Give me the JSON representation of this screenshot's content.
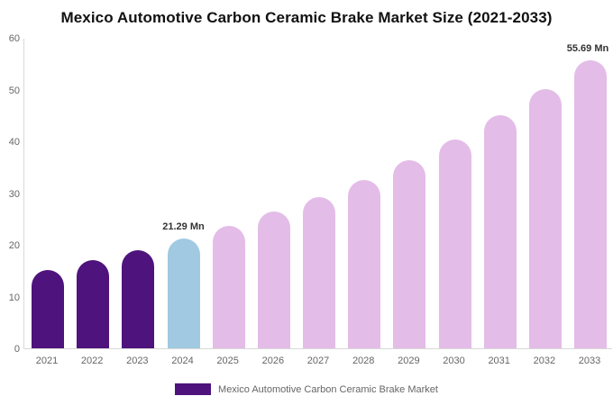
{
  "chart": {
    "title": "Mexico Automotive Carbon Ceramic Brake Market Size (2021-2033)"
  },
  "chart_data": {
    "type": "bar",
    "title": "Mexico Automotive Carbon Ceramic Brake Market Size (2021-2033)",
    "categories": [
      "2021",
      "2022",
      "2023",
      "2024",
      "2025",
      "2026",
      "2027",
      "2028",
      "2029",
      "2030",
      "2031",
      "2032",
      "2033"
    ],
    "values": [
      15.2,
      17.1,
      19.0,
      21.29,
      23.7,
      26.4,
      29.3,
      32.6,
      36.3,
      40.4,
      45.0,
      50.1,
      55.69
    ],
    "point_colors": [
      "#4E137C",
      "#4E137C",
      "#4E137C",
      "#A1C9E1",
      "#E4BCE8",
      "#E4BCE8",
      "#E4BCE8",
      "#E4BCE8",
      "#E4BCE8",
      "#E4BCE8",
      "#E4BCE8",
      "#E4BCE8",
      "#E4BCE8"
    ],
    "value_labels": [
      {
        "index": 3,
        "text": "21.29 Mn"
      },
      {
        "index": 12,
        "text": "55.69 Mn"
      }
    ],
    "xlabel": "",
    "ylabel": "",
    "ylim": [
      0,
      60
    ],
    "yticks": [
      "0",
      "10",
      "20",
      "30",
      "40",
      "50",
      "60"
    ],
    "grid": false,
    "legend": {
      "position": "bottom",
      "items": [
        {
          "label": "Mexico Automotive Carbon Ceramic Brake Market",
          "color": "#4E137C"
        }
      ]
    }
  },
  "colors": {
    "historical_bar": "#4E137C",
    "current_year_bar": "#A1C9E1",
    "forecast_bar": "#E4BCE8",
    "axis_line": "#D9D9D9",
    "tick_text": "#666666",
    "value_label_text": "#333333",
    "title_text": "#111111",
    "background": "#FFFFFF"
  }
}
